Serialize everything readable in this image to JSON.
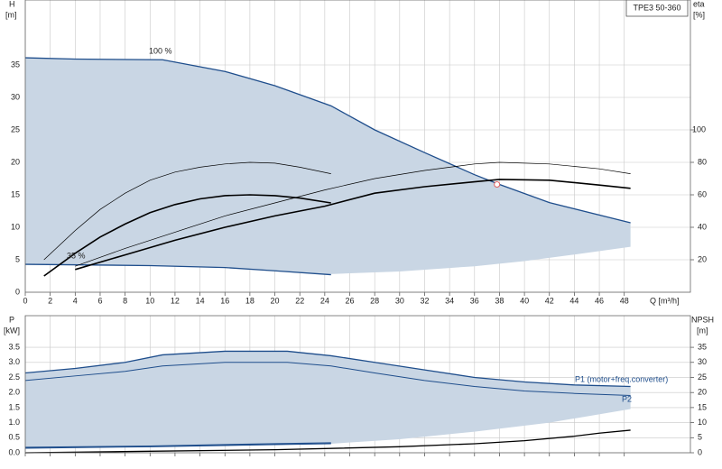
{
  "chart_data": [
    {
      "type": "line",
      "title": "TPE3 50-360",
      "ylabel": "H",
      "yunit": "[m]",
      "y2label": "eta",
      "y2unit": "[%]",
      "xlabel": "Q [m³/h]",
      "xlim": [
        0,
        53.3
      ],
      "xticks": [
        0,
        2,
        4,
        6,
        8,
        10,
        12,
        14,
        16,
        18,
        20,
        22,
        24,
        26,
        28,
        30,
        32,
        34,
        36,
        38,
        40,
        42,
        44,
        46,
        48
      ],
      "ylim": [
        0,
        45
      ],
      "yticks": [
        0,
        5,
        10,
        15,
        20,
        25,
        30,
        35
      ],
      "y2lim": [
        0,
        180
      ],
      "y2ticks": [
        20,
        40,
        60,
        80,
        100
      ],
      "grid": true,
      "show_xtick_labels": true,
      "area": {
        "color": "#c9d6e4",
        "x": [
          0,
          10,
          16,
          20,
          24.5,
          24.5,
          30,
          36,
          40,
          44,
          48.5
        ],
        "values": [
          4.3,
          4.1,
          3.8,
          3.3,
          2.7,
          2.8,
          3.2,
          4,
          4.8,
          5.8,
          7
        ]
      },
      "series": [
        {
          "name": "100 %",
          "color": "#1f4e8c",
          "width": 1.3,
          "x": [
            0,
            4,
            11,
            16,
            20,
            24.5,
            28,
            32,
            36,
            38,
            42,
            48.5
          ],
          "values": [
            36.1,
            35.9,
            35.8,
            34,
            31.8,
            28.7,
            25,
            21.5,
            18.1,
            16.6,
            13.8,
            10.7
          ]
        },
        {
          "name": "35 %",
          "color": "#1f4e8c",
          "width": 1.3,
          "x": [
            0,
            10,
            16,
            20,
            24.5
          ],
          "values": [
            4.3,
            4.1,
            3.8,
            3.3,
            2.7
          ]
        },
        {
          "color": "#000000",
          "width": 0.7,
          "axis": "y2",
          "x": [
            1.5,
            4,
            6,
            8,
            10,
            12,
            14,
            16,
            18,
            20,
            22,
            24.5
          ],
          "values": [
            20,
            38,
            51,
            61,
            69,
            74,
            77,
            79,
            80,
            79.5,
            77,
            73
          ]
        },
        {
          "color": "#000000",
          "width": 1.6,
          "axis": "y2",
          "x": [
            1.5,
            4,
            6,
            8,
            10,
            12,
            14,
            16,
            18,
            20,
            22,
            24.5
          ],
          "values": [
            10,
            24,
            34,
            42,
            49,
            54,
            57.5,
            59.5,
            60,
            59.5,
            58,
            55
          ]
        },
        {
          "color": "#000000",
          "width": 0.7,
          "axis": "y2",
          "x": [
            4,
            8,
            12,
            16,
            20,
            24,
            28,
            32,
            36,
            38,
            42,
            46,
            48.5
          ],
          "values": [
            16,
            27,
            37,
            47,
            55,
            63,
            70,
            75,
            79,
            80,
            79,
            76,
            73
          ]
        },
        {
          "color": "#000000",
          "width": 1.6,
          "axis": "y2",
          "x": [
            4,
            8,
            12,
            16,
            20,
            24,
            28,
            32,
            36,
            38,
            42,
            46,
            48.5
          ],
          "values": [
            14,
            23,
            32,
            40,
            47,
            53,
            61,
            65,
            68,
            69.5,
            69,
            66,
            64
          ]
        }
      ],
      "point": {
        "x": 37.8,
        "y": 16.6,
        "color": "#e06060"
      }
    },
    {
      "type": "line",
      "ylabel": "P",
      "yunit": "[kW]",
      "y2label": "NPSH",
      "y2unit": "[m]",
      "xlim": [
        0,
        53.3
      ],
      "xticks": [
        0,
        2,
        4,
        6,
        8,
        10,
        12,
        14,
        16,
        18,
        20,
        22,
        24,
        26,
        28,
        30,
        32,
        34,
        36,
        38,
        40,
        42,
        44,
        46,
        48
      ],
      "ylim": [
        0,
        4.55
      ],
      "yticks": [
        {
          "value": 0,
          "label": "0.0"
        },
        0.5,
        {
          "value": 1,
          "label": "1.0"
        },
        1.5,
        {
          "value": 2,
          "label": "2.0"
        },
        2.5,
        {
          "value": 3,
          "label": "3.0"
        },
        3.5
      ],
      "y2lim": [
        0,
        45.5
      ],
      "y2ticks": [
        0,
        5,
        10,
        15,
        20,
        25,
        30,
        35
      ],
      "grid": true,
      "show_xtick_labels": false,
      "area": {
        "color": "#c9d6e4",
        "x": [
          0,
          24.5,
          30,
          36,
          42,
          48.5
        ],
        "values": [
          0.15,
          0.3,
          0.45,
          0.7,
          1.0,
          1.45
        ]
      },
      "series": [
        {
          "name": "P1 (motor+freq.converter)",
          "color": "#1f4e8c",
          "width": 1.3,
          "x": [
            0,
            4,
            8,
            11,
            16,
            21,
            24.5,
            28,
            32,
            36,
            40,
            44,
            48.5
          ],
          "values": [
            2.65,
            2.8,
            3.0,
            3.25,
            3.37,
            3.37,
            3.22,
            3.0,
            2.75,
            2.5,
            2.35,
            2.25,
            2.2
          ]
        },
        {
          "name": "P2",
          "color": "#1f4e8c",
          "width": 1.0,
          "x": [
            0,
            4,
            8,
            11,
            16,
            21,
            24.5,
            28,
            32,
            36,
            40,
            44,
            48.5
          ],
          "values": [
            2.4,
            2.55,
            2.7,
            2.88,
            3.0,
            3.0,
            2.88,
            2.65,
            2.4,
            2.2,
            2.05,
            1.97,
            1.9
          ]
        },
        {
          "color": "#1f4e8c",
          "width": 1.3,
          "x": [
            0,
            10,
            20,
            24.5
          ],
          "values": [
            0.18,
            0.22,
            0.3,
            0.33
          ]
        },
        {
          "color": "#1f4e8c",
          "width": 1.0,
          "x": [
            0,
            10,
            20,
            24.5
          ],
          "values": [
            0.15,
            0.2,
            0.27,
            0.3
          ]
        },
        {
          "color": "#000000",
          "width": 1.3,
          "axis": "y2",
          "x": [
            0,
            10,
            20,
            30,
            36,
            40,
            44,
            46,
            48.5
          ],
          "values": [
            0,
            0.5,
            1,
            2,
            3,
            4,
            5.5,
            6.5,
            7.5
          ]
        }
      ]
    }
  ]
}
